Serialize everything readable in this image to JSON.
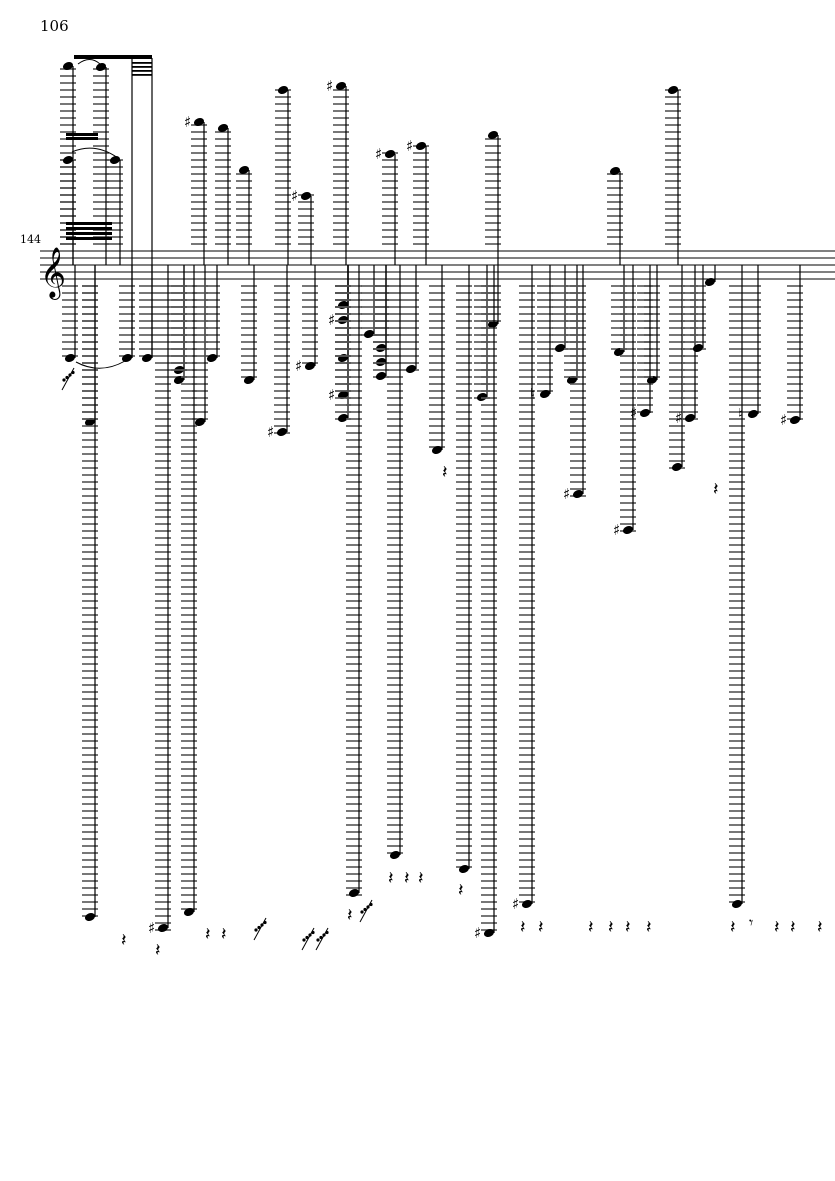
{
  "page": {
    "number": "106"
  },
  "system": {
    "measure_number": "144",
    "clef": "treble-clef"
  },
  "colors": {
    "ink": "#000000",
    "ledger": "#555555"
  }
}
